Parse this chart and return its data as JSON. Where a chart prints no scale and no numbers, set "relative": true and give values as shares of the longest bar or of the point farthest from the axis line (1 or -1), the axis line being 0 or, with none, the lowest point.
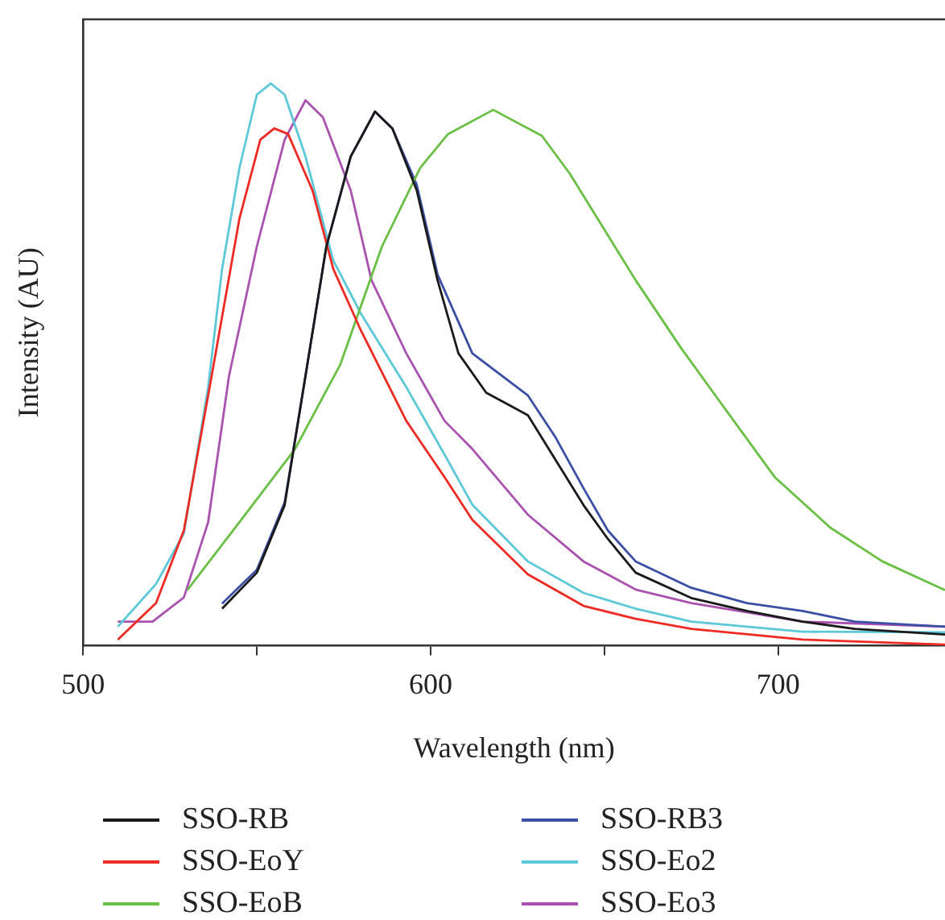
{
  "chart_data": {
    "type": "line",
    "xlabel": "Wavelength (nm)",
    "ylabel": "Intensity (AU)",
    "relative": true,
    "xlim": [
      500,
      748
    ],
    "xticks": [
      500,
      {
        "value": 550,
        "label": null
      },
      600,
      {
        "value": 650,
        "label": null
      },
      700
    ],
    "grid": false,
    "legend": "bottom",
    "marker": "none",
    "line_style": "solid",
    "series": [
      {
        "name": "SSO-RB",
        "color": "#1a1a1a",
        "x": [
          540,
          550,
          558,
          564,
          570,
          577,
          584,
          589,
          596,
          602,
          608,
          616,
          628,
          636,
          644,
          651,
          659,
          675,
          691,
          707,
          722,
          748
        ],
        "values": [
          0.066,
          0.13,
          0.25,
          0.48,
          0.71,
          0.87,
          0.95,
          0.92,
          0.81,
          0.65,
          0.52,
          0.45,
          0.41,
          0.33,
          0.25,
          0.19,
          0.13,
          0.085,
          0.062,
          0.043,
          0.03,
          0.02
        ]
      },
      {
        "name": "SSO-EoY",
        "color": "#ee2a24",
        "x": [
          510,
          521,
          529,
          537,
          545,
          551,
          555,
          559,
          566,
          572,
          580,
          593,
          604,
          612,
          628,
          644,
          659,
          675,
          707,
          748
        ],
        "values": [
          0.011,
          0.076,
          0.205,
          0.48,
          0.76,
          0.9,
          0.92,
          0.91,
          0.81,
          0.67,
          0.56,
          0.4,
          0.3,
          0.224,
          0.127,
          0.071,
          0.048,
          0.03,
          0.011,
          0.002
        ]
      },
      {
        "name": "SSO-EoB",
        "color": "#6abf45",
        "x": [
          530,
          545,
          561,
          574,
          586,
          597,
          605,
          618,
          632,
          640,
          651,
          659,
          672,
          683,
          699,
          715,
          730,
          748
        ],
        "values": [
          0.099,
          0.22,
          0.35,
          0.5,
          0.71,
          0.85,
          0.91,
          0.953,
          0.907,
          0.84,
          0.73,
          0.65,
          0.53,
          0.436,
          0.3,
          0.21,
          0.15,
          0.099
        ]
      },
      {
        "name": "SSO-RB3",
        "color": "#3b4fa5",
        "x": [
          540,
          550,
          558,
          564,
          570,
          577,
          584,
          589,
          596,
          602,
          612,
          628,
          636,
          644,
          651,
          659,
          675,
          691,
          707,
          722,
          748
        ],
        "values": [
          0.075,
          0.135,
          0.255,
          0.48,
          0.71,
          0.87,
          0.95,
          0.92,
          0.82,
          0.66,
          0.52,
          0.445,
          0.37,
          0.28,
          0.205,
          0.15,
          0.103,
          0.076,
          0.062,
          0.043,
          0.034
        ]
      },
      {
        "name": "SSO-Eo2",
        "color": "#5cc8d8",
        "x": [
          510,
          521,
          529,
          536,
          540,
          545,
          550,
          554,
          558,
          564,
          572,
          580,
          593,
          604,
          612,
          628,
          644,
          659,
          675,
          707,
          748
        ],
        "values": [
          0.034,
          0.11,
          0.2,
          0.46,
          0.67,
          0.85,
          0.98,
          1,
          0.98,
          0.87,
          0.685,
          0.59,
          0.46,
          0.34,
          0.251,
          0.15,
          0.094,
          0.066,
          0.043,
          0.025,
          0.024
        ]
      },
      {
        "name": "SSO-Eo3",
        "color": "#a952b0",
        "x": [
          510,
          520,
          529,
          536,
          542,
          550,
          558,
          564,
          569,
          577,
          583,
          593,
          604,
          612,
          628,
          644,
          659,
          675,
          707,
          748
        ],
        "values": [
          0.043,
          0.043,
          0.086,
          0.22,
          0.48,
          0.71,
          0.9,
          0.97,
          0.94,
          0.81,
          0.65,
          0.52,
          0.4,
          0.35,
          0.233,
          0.15,
          0.1,
          0.076,
          0.043,
          0.034
        ]
      }
    ]
  }
}
